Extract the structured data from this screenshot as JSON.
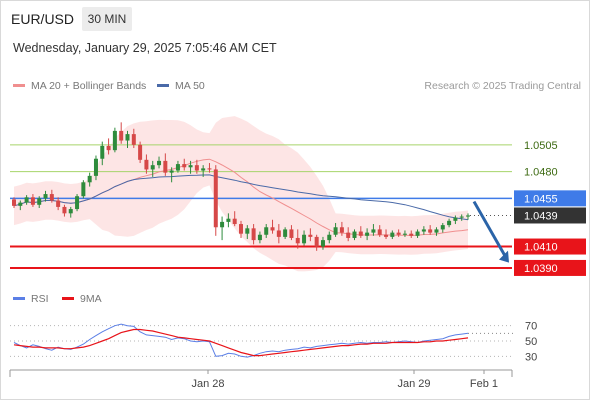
{
  "header": {
    "symbol": "EUR/USD",
    "timeframe": "30 MIN",
    "datetime": "Wednesday, January 29, 2025 7:05:46 AM CET"
  },
  "legend": {
    "ma20_label": "MA 20 + Bollinger Bands",
    "ma50_label": "MA 50",
    "rsi_label": "RSI",
    "ma9_label": "9MA"
  },
  "credit": "Research © 2025 Trading Central",
  "colors": {
    "ma20": "#f08f8f",
    "bollinger_fill": "#fde0e0",
    "ma50": "#4a6aa8",
    "resistance": "#a6d46a",
    "pivot": "#3f7be8",
    "support": "#e8141a",
    "current_price_tag": "#333333",
    "arrow": "#2b64a8",
    "rsi": "#5b7fe6",
    "rsi_ma": "#e8141a",
    "candle_up": "#2e8b3c",
    "candle_down": "#d64848"
  },
  "chart_data": [
    {
      "type": "candlestick",
      "symbol": "EUR/USD",
      "interval": "30 MIN",
      "x_ticks": [
        "Jan 28",
        "Jan 29",
        "Feb 1"
      ],
      "ylim": [
        1.0375,
        1.0545
      ],
      "levels": [
        {
          "label": "1.0505",
          "value": 1.0505,
          "kind": "resistance"
        },
        {
          "label": "1.0480",
          "value": 1.048,
          "kind": "resistance"
        },
        {
          "label": "1.0455",
          "value": 1.0455,
          "kind": "pivot"
        },
        {
          "label": "1.0410",
          "value": 1.041,
          "kind": "support"
        },
        {
          "label": "1.0390",
          "value": 1.039,
          "kind": "support"
        }
      ],
      "current_price": {
        "label": "1.0439",
        "value": 1.0439
      },
      "forecast_arrow": {
        "from": 1.0452,
        "to": 1.0395,
        "direction": "down"
      },
      "candles": [
        [
          1.0454,
          1.0456,
          1.0446,
          1.0448
        ],
        [
          1.0448,
          1.0453,
          1.0444,
          1.0451
        ],
        [
          1.0451,
          1.0458,
          1.0449,
          1.0456
        ],
        [
          1.0456,
          1.0459,
          1.0447,
          1.0449
        ],
        [
          1.0449,
          1.0457,
          1.0446,
          1.0455
        ],
        [
          1.0455,
          1.0462,
          1.0452,
          1.0459
        ],
        [
          1.0459,
          1.0463,
          1.0451,
          1.0453
        ],
        [
          1.0453,
          1.0456,
          1.0444,
          1.0447
        ],
        [
          1.0447,
          1.0449,
          1.0438,
          1.0441
        ],
        [
          1.0441,
          1.0447,
          1.0437,
          1.0445
        ],
        [
          1.0445,
          1.0459,
          1.0443,
          1.0457
        ],
        [
          1.0457,
          1.0472,
          1.0455,
          1.047
        ],
        [
          1.047,
          1.0479,
          1.0466,
          1.0476
        ],
        [
          1.0476,
          1.0495,
          1.0472,
          1.0492
        ],
        [
          1.0492,
          1.0508,
          1.0486,
          1.0504
        ],
        [
          1.0504,
          1.0511,
          1.0496,
          1.05
        ],
        [
          1.05,
          1.0521,
          1.0498,
          1.0518
        ],
        [
          1.0518,
          1.0526,
          1.0506,
          1.0509
        ],
        [
          1.0509,
          1.0518,
          1.0502,
          1.0515
        ],
        [
          1.0515,
          1.052,
          1.0502,
          1.0505
        ],
        [
          1.0505,
          1.0508,
          1.0488,
          1.0491
        ],
        [
          1.0491,
          1.0496,
          1.0478,
          1.0482
        ],
        [
          1.0482,
          1.049,
          1.0475,
          1.0486
        ],
        [
          1.0486,
          1.0494,
          1.0483,
          1.049
        ],
        [
          1.049,
          1.0497,
          1.0476,
          1.0479
        ],
        [
          1.0479,
          1.0484,
          1.047,
          1.0481
        ],
        [
          1.0481,
          1.049,
          1.0479,
          1.0487
        ],
        [
          1.0487,
          1.0492,
          1.0481,
          1.0484
        ],
        [
          1.0484,
          1.049,
          1.0478,
          1.0486
        ],
        [
          1.0486,
          1.0491,
          1.0478,
          1.0481
        ],
        [
          1.0481,
          1.0486,
          1.0475,
          1.0483
        ],
        [
          1.0483,
          1.0488,
          1.0479,
          1.0482
        ],
        [
          1.0482,
          1.0486,
          1.042,
          1.0428
        ],
        [
          1.0428,
          1.0438,
          1.0416,
          1.0433
        ],
        [
          1.0433,
          1.0441,
          1.0428,
          1.0436
        ],
        [
          1.0436,
          1.0443,
          1.0429,
          1.0431
        ],
        [
          1.0431,
          1.0434,
          1.0418,
          1.0422
        ],
        [
          1.0422,
          1.043,
          1.0417,
          1.0427
        ],
        [
          1.0427,
          1.0431,
          1.0412,
          1.0416
        ],
        [
          1.0416,
          1.0424,
          1.0413,
          1.0421
        ],
        [
          1.0421,
          1.0431,
          1.0418,
          1.0428
        ],
        [
          1.0428,
          1.0435,
          1.0422,
          1.0425
        ],
        [
          1.0425,
          1.0431,
          1.0413,
          1.0419
        ],
        [
          1.0419,
          1.0428,
          1.0417,
          1.0426
        ],
        [
          1.0426,
          1.043,
          1.0416,
          1.0418
        ],
        [
          1.0418,
          1.0426,
          1.0408,
          1.0413
        ],
        [
          1.0413,
          1.0425,
          1.0411,
          1.0421
        ],
        [
          1.0421,
          1.0427,
          1.0415,
          1.0419
        ],
        [
          1.0419,
          1.0421,
          1.0406,
          1.041
        ],
        [
          1.041,
          1.0419,
          1.0407,
          1.0416
        ],
        [
          1.0416,
          1.0424,
          1.0413,
          1.0421
        ],
        [
          1.0421,
          1.0432,
          1.0419,
          1.0428
        ],
        [
          1.0428,
          1.0433,
          1.042,
          1.0423
        ],
        [
          1.0423,
          1.0428,
          1.0415,
          1.0418
        ],
        [
          1.0418,
          1.0426,
          1.0416,
          1.0424
        ],
        [
          1.0424,
          1.0429,
          1.0418,
          1.042
        ],
        [
          1.042,
          1.0427,
          1.0416,
          1.0423
        ],
        [
          1.0423,
          1.0431,
          1.042,
          1.0426
        ],
        [
          1.0426,
          1.043,
          1.0419,
          1.0421
        ],
        [
          1.0421,
          1.0426,
          1.0417,
          1.0419
        ],
        [
          1.0419,
          1.0425,
          1.0417,
          1.0423
        ],
        [
          1.0423,
          1.0426,
          1.0419,
          1.0421
        ],
        [
          1.0421,
          1.0425,
          1.0419,
          1.0422
        ],
        [
          1.0422,
          1.0425,
          1.0418,
          1.042
        ],
        [
          1.042,
          1.0426,
          1.0418,
          1.0424
        ],
        [
          1.0424,
          1.0429,
          1.0421,
          1.0426
        ],
        [
          1.0426,
          1.043,
          1.0421,
          1.0423
        ],
        [
          1.0423,
          1.0428,
          1.042,
          1.0426
        ],
        [
          1.0426,
          1.0432,
          1.0423,
          1.043
        ],
        [
          1.043,
          1.0436,
          1.0428,
          1.0434
        ],
        [
          1.0434,
          1.0439,
          1.0431,
          1.0437
        ],
        [
          1.0437,
          1.044,
          1.0434,
          1.0438
        ],
        [
          1.0438,
          1.0441,
          1.0435,
          1.0439
        ]
      ]
    },
    {
      "type": "line",
      "name": "RSI",
      "ylim": [
        20,
        80
      ],
      "y_ticks": [
        70,
        50,
        30
      ],
      "series": [
        {
          "name": "RSI",
          "values": [
            48,
            44,
            41,
            45,
            43,
            40,
            38,
            42,
            40,
            39,
            42,
            46,
            52,
            57,
            62,
            66,
            70,
            72,
            70,
            69,
            62,
            58,
            57,
            56,
            55,
            52,
            54,
            53,
            50,
            49,
            50,
            49,
            30,
            31,
            34,
            33,
            30,
            29,
            31,
            34,
            36,
            37,
            36,
            38,
            39,
            40,
            42,
            41,
            43,
            44,
            45,
            46,
            47,
            46,
            47,
            48,
            47,
            48,
            48,
            49,
            48,
            49,
            50,
            49,
            48,
            50,
            51,
            52,
            53,
            56,
            58,
            59,
            60
          ]
        },
        {
          "name": "9MA",
          "values": [
            45,
            44,
            43,
            42,
            42,
            41,
            41,
            41,
            40,
            40,
            41,
            42,
            44,
            47,
            50,
            53,
            57,
            61,
            63,
            65,
            65,
            64,
            63,
            61,
            59,
            57,
            55,
            54,
            53,
            52,
            51,
            50,
            47,
            44,
            41,
            38,
            35,
            33,
            31,
            31,
            32,
            33,
            34,
            35,
            36,
            37,
            38,
            39,
            40,
            41,
            42,
            43,
            44,
            44,
            45,
            46,
            46,
            47,
            47,
            47,
            48,
            48,
            48,
            48,
            48,
            49,
            49,
            50,
            50,
            51,
            52,
            53,
            54
          ]
        }
      ]
    }
  ]
}
